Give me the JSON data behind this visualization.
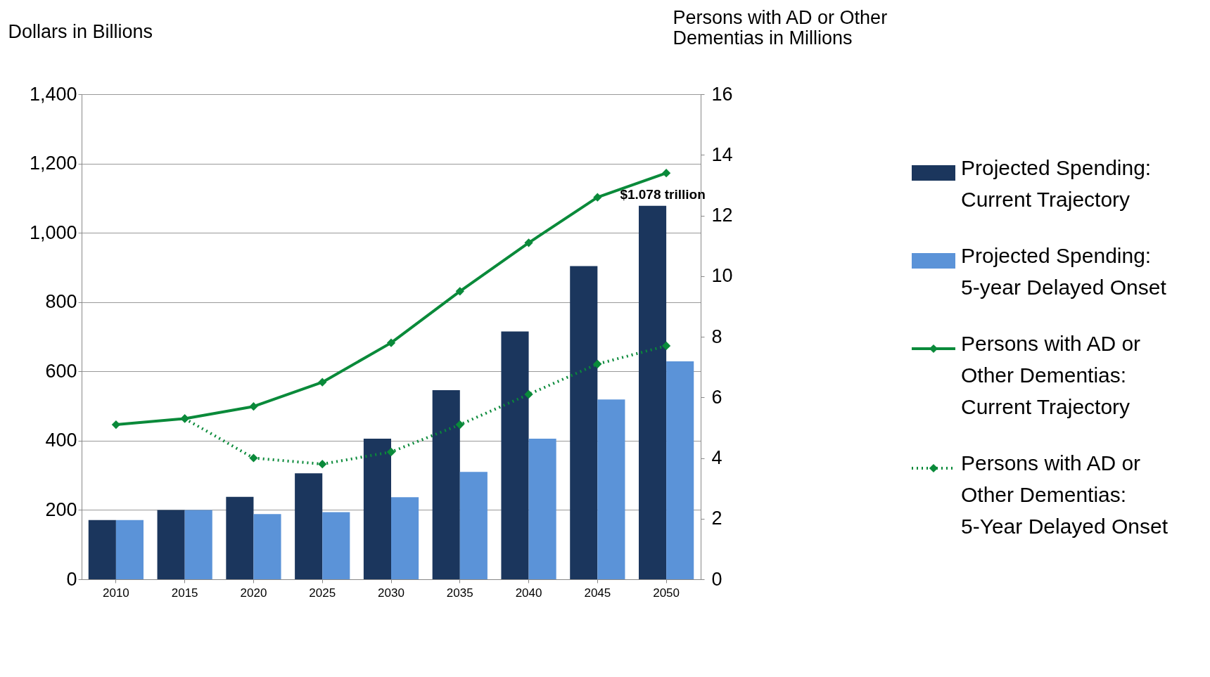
{
  "chart_data": {
    "type": "bar",
    "categories": [
      "2010",
      "2015",
      "2020",
      "2025",
      "2030",
      "2035",
      "2040",
      "2045",
      "2050"
    ],
    "ylabel": "Dollars in Billions",
    "y2label": "Persons with AD or Other Dementias in Millions",
    "ylim": [
      0,
      1400
    ],
    "yticks": [
      0,
      200,
      400,
      600,
      800,
      {
        "value": 1000,
        "label": "1,000"
      },
      {
        "value": 1200,
        "label": "1,200"
      },
      {
        "value": 1400,
        "label": "1,400"
      }
    ],
    "y2lim": [
      0,
      16
    ],
    "y2ticks": [
      0,
      2,
      4,
      6,
      8,
      10,
      12,
      14,
      16
    ],
    "grid": "y",
    "legend": "right",
    "series": [
      {
        "name": "Projected Spending: Current Trajectory",
        "color": "#1b365d",
        "values": [
          171,
          200,
          238,
          306,
          406,
          546,
          715,
          904,
          1078
        ]
      },
      {
        "name": "Projected Spending: 5-year Delayed Onset",
        "color": "#5b93d8",
        "values": [
          171,
          200,
          188,
          194,
          237,
          310,
          406,
          519,
          629
        ]
      },
      {
        "name": "Persons with AD or Other Dementias: Current Trajectory",
        "type": "line",
        "axis": "y2",
        "color": "#0a8a3a",
        "line_style": "solid",
        "marker": "diamond",
        "values": [
          5.1,
          5.3,
          5.7,
          6.5,
          7.8,
          9.5,
          11.1,
          12.6,
          13.4
        ]
      },
      {
        "name": "Persons with AD or Other Dementias: 5-Year Delayed Onset",
        "type": "line",
        "axis": "y2",
        "color": "#0a8a3a",
        "line_style": "dotted",
        "marker": "diamond",
        "values": [
          null,
          5.3,
          4.0,
          3.8,
          4.2,
          5.1,
          6.1,
          7.1,
          7.7
        ]
      }
    ],
    "annotations": [
      {
        "text": "$1.078 trillion",
        "x": "2050",
        "y": 1078
      }
    ]
  }
}
